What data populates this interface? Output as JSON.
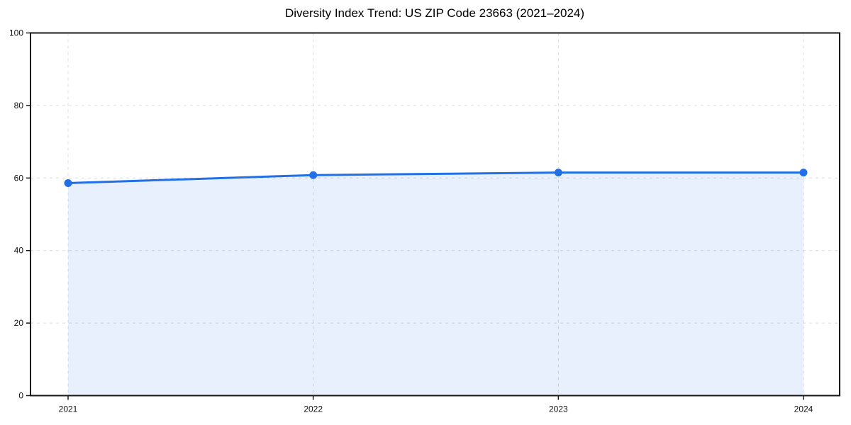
{
  "chart_data": {
    "type": "line",
    "title": "Diversity Index Trend: US ZIP Code 23663 (2021–2024)",
    "categories": [
      "2021",
      "2022",
      "2023",
      "2024"
    ],
    "series": [
      {
        "name": "Diversity Index",
        "values": [
          58.6,
          60.8,
          61.5,
          61.5
        ]
      }
    ],
    "xlabel": "",
    "ylabel": "",
    "ylim": [
      0,
      100
    ],
    "yticks": [
      0,
      20,
      40,
      60,
      80,
      100
    ],
    "grid": "dashed",
    "legend_position": "none",
    "area_fill": true,
    "colors": {
      "line": "#2170e8",
      "marker": "#2170e8",
      "fill": "#2170e8",
      "fill_opacity": "0.10",
      "grid": "#dcdcdc",
      "spine": "#1a1a1a",
      "text": "#111111",
      "background": "#ffffff"
    }
  }
}
